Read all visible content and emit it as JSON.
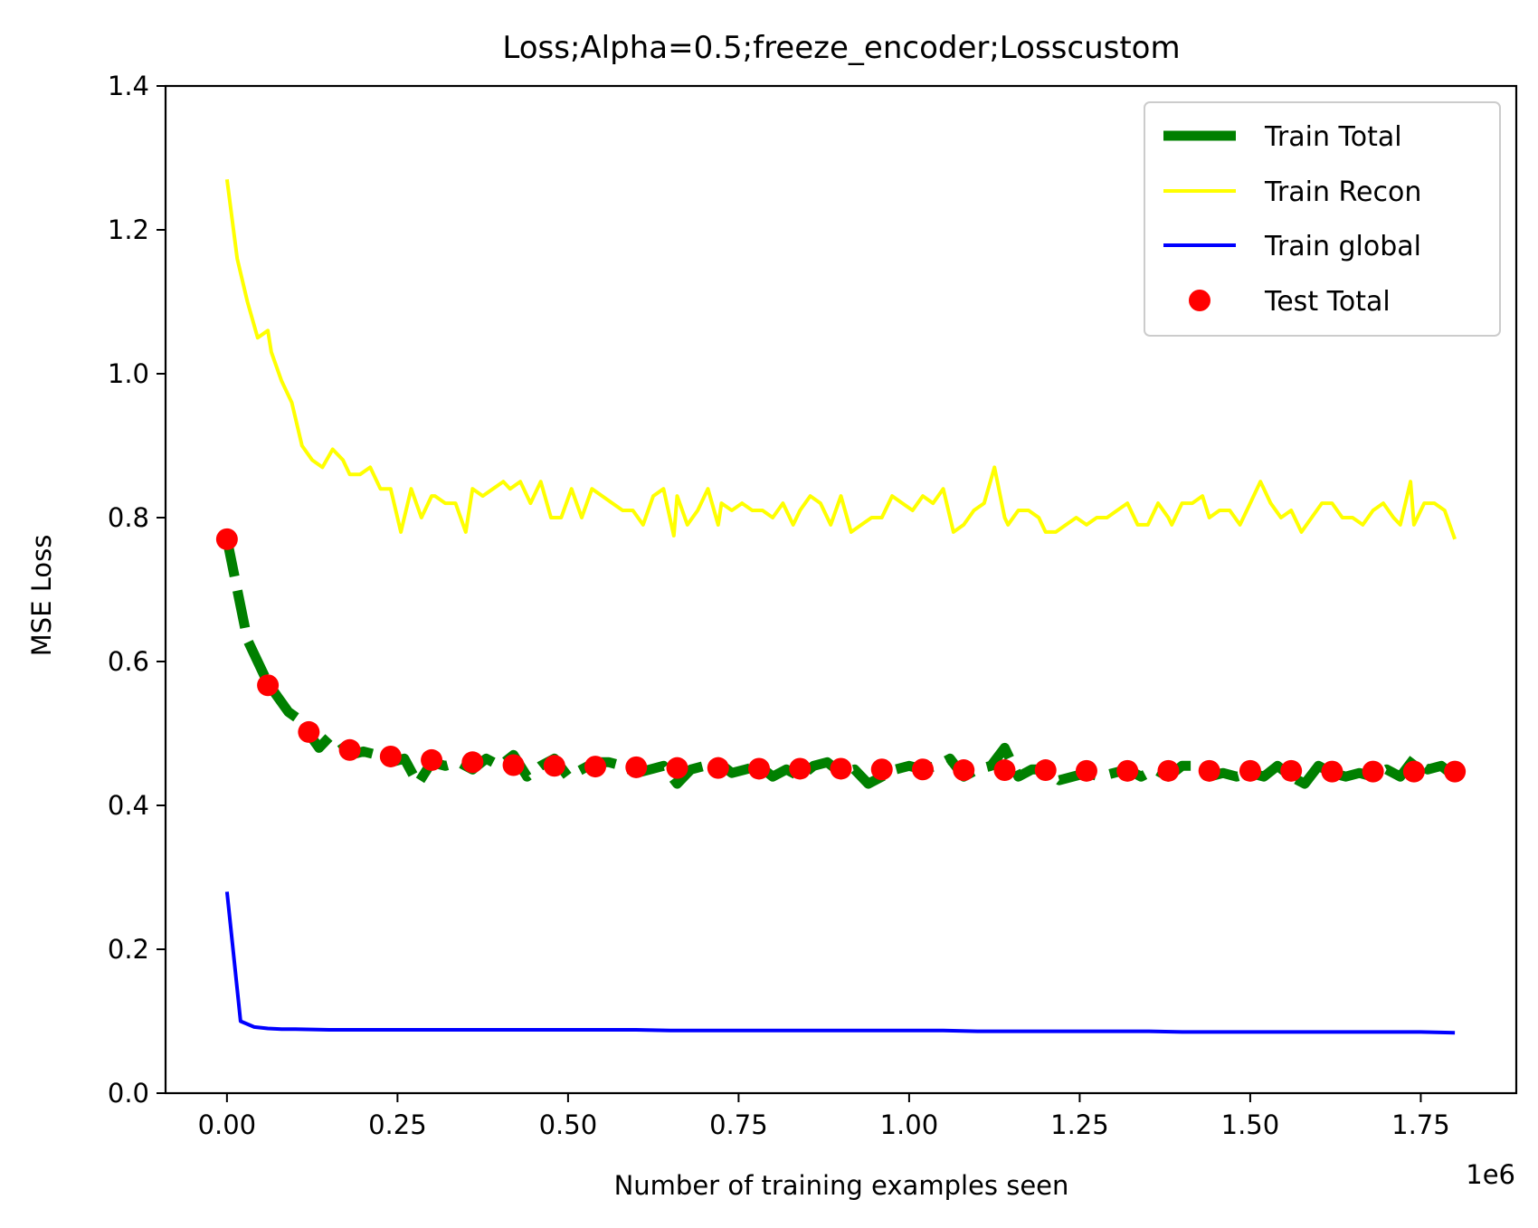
{
  "chart_data": {
    "type": "line",
    "title": "Loss;Alpha=0.5;freeze_encoder;Losscustom",
    "xlabel": "Number of training examples seen",
    "ylabel": "MSE Loss",
    "x_offset_label": "1e6",
    "xlim": [
      -0.09,
      1.89
    ],
    "ylim": [
      0.0,
      1.4
    ],
    "xticks": [
      0.0,
      0.25,
      0.5,
      0.75,
      1.0,
      1.25,
      1.5,
      1.75
    ],
    "xtick_labels": [
      "0.00",
      "0.25",
      "0.50",
      "0.75",
      "1.00",
      "1.25",
      "1.50",
      "1.75"
    ],
    "yticks": [
      0.0,
      0.2,
      0.4,
      0.6,
      0.8,
      1.0,
      1.2,
      1.4
    ],
    "ytick_labels": [
      "0.0",
      "0.2",
      "0.4",
      "0.6",
      "0.8",
      "1.0",
      "1.2",
      "1.4"
    ],
    "grid": false,
    "legend_position": "top-right",
    "series": [
      {
        "name": "Train Total",
        "style": "dashed",
        "color": "#008000",
        "x": [
          0.0,
          0.015,
          0.03,
          0.045,
          0.06,
          0.075,
          0.09,
          0.105,
          0.12,
          0.135,
          0.15,
          0.165,
          0.18,
          0.2,
          0.22,
          0.24,
          0.26,
          0.28,
          0.3,
          0.32,
          0.34,
          0.36,
          0.38,
          0.4,
          0.42,
          0.44,
          0.46,
          0.48,
          0.5,
          0.52,
          0.54,
          0.56,
          0.58,
          0.6,
          0.62,
          0.64,
          0.66,
          0.68,
          0.7,
          0.72,
          0.74,
          0.76,
          0.78,
          0.8,
          0.82,
          0.84,
          0.86,
          0.88,
          0.9,
          0.92,
          0.94,
          0.96,
          0.98,
          1.0,
          1.02,
          1.04,
          1.06,
          1.08,
          1.1,
          1.12,
          1.14,
          1.16,
          1.18,
          1.2,
          1.22,
          1.24,
          1.26,
          1.28,
          1.3,
          1.32,
          1.34,
          1.36,
          1.38,
          1.4,
          1.42,
          1.44,
          1.46,
          1.48,
          1.5,
          1.52,
          1.54,
          1.56,
          1.58,
          1.6,
          1.62,
          1.64,
          1.66,
          1.68,
          1.7,
          1.72,
          1.74,
          1.76,
          1.78,
          1.8
        ],
        "values": [
          0.77,
          0.7,
          0.63,
          0.6,
          0.57,
          0.55,
          0.53,
          0.52,
          0.5,
          0.48,
          0.495,
          0.49,
          0.47,
          0.475,
          0.47,
          0.46,
          0.465,
          0.43,
          0.46,
          0.455,
          0.46,
          0.45,
          0.465,
          0.455,
          0.47,
          0.44,
          0.455,
          0.465,
          0.44,
          0.45,
          0.46,
          0.46,
          0.455,
          0.445,
          0.45,
          0.455,
          0.43,
          0.45,
          0.455,
          0.46,
          0.445,
          0.45,
          0.455,
          0.44,
          0.45,
          0.44,
          0.455,
          0.46,
          0.445,
          0.45,
          0.43,
          0.44,
          0.45,
          0.455,
          0.45,
          0.455,
          0.465,
          0.44,
          0.45,
          0.455,
          0.48,
          0.44,
          0.45,
          0.45,
          0.435,
          0.44,
          0.445,
          0.44,
          0.445,
          0.45,
          0.44,
          0.45,
          0.44,
          0.455,
          0.455,
          0.44,
          0.445,
          0.44,
          0.445,
          0.44,
          0.455,
          0.44,
          0.43,
          0.455,
          0.445,
          0.44,
          0.445,
          0.44,
          0.45,
          0.44,
          0.465,
          0.45,
          0.455,
          0.44
        ]
      },
      {
        "name": "Train Recon",
        "style": "solid",
        "color": "#ffff00",
        "x": [
          0.0,
          0.015,
          0.03,
          0.045,
          0.06,
          0.065,
          0.08,
          0.095,
          0.11,
          0.125,
          0.14,
          0.155,
          0.17,
          0.18,
          0.195,
          0.21,
          0.225,
          0.24,
          0.255,
          0.27,
          0.285,
          0.3,
          0.305,
          0.32,
          0.335,
          0.35,
          0.36,
          0.375,
          0.39,
          0.405,
          0.415,
          0.43,
          0.445,
          0.46,
          0.475,
          0.49,
          0.505,
          0.52,
          0.535,
          0.55,
          0.565,
          0.58,
          0.595,
          0.61,
          0.625,
          0.64,
          0.655,
          0.66,
          0.675,
          0.69,
          0.705,
          0.72,
          0.725,
          0.74,
          0.755,
          0.77,
          0.785,
          0.8,
          0.815,
          0.83,
          0.84,
          0.855,
          0.87,
          0.885,
          0.9,
          0.915,
          0.93,
          0.945,
          0.96,
          0.975,
          0.99,
          1.005,
          1.02,
          1.035,
          1.05,
          1.065,
          1.08,
          1.095,
          1.11,
          1.125,
          1.14,
          1.145,
          1.16,
          1.175,
          1.19,
          1.2,
          1.215,
          1.23,
          1.245,
          1.26,
          1.275,
          1.29,
          1.305,
          1.32,
          1.335,
          1.35,
          1.365,
          1.38,
          1.385,
          1.4,
          1.415,
          1.43,
          1.44,
          1.455,
          1.47,
          1.485,
          1.5,
          1.515,
          1.53,
          1.545,
          1.56,
          1.575,
          1.59,
          1.605,
          1.62,
          1.635,
          1.65,
          1.665,
          1.68,
          1.695,
          1.71,
          1.72,
          1.735,
          1.74,
          1.755,
          1.77,
          1.785,
          1.8
        ],
        "values": [
          1.27,
          1.16,
          1.1,
          1.05,
          1.06,
          1.03,
          0.99,
          0.96,
          0.9,
          0.88,
          0.87,
          0.895,
          0.88,
          0.86,
          0.86,
          0.87,
          0.84,
          0.84,
          0.78,
          0.84,
          0.8,
          0.83,
          0.83,
          0.82,
          0.82,
          0.78,
          0.84,
          0.83,
          0.84,
          0.85,
          0.84,
          0.85,
          0.82,
          0.85,
          0.8,
          0.8,
          0.84,
          0.8,
          0.84,
          0.83,
          0.82,
          0.81,
          0.81,
          0.79,
          0.83,
          0.84,
          0.775,
          0.83,
          0.79,
          0.81,
          0.84,
          0.79,
          0.82,
          0.81,
          0.82,
          0.81,
          0.81,
          0.8,
          0.82,
          0.79,
          0.81,
          0.83,
          0.82,
          0.79,
          0.83,
          0.78,
          0.79,
          0.8,
          0.8,
          0.83,
          0.82,
          0.81,
          0.83,
          0.82,
          0.84,
          0.78,
          0.79,
          0.81,
          0.82,
          0.87,
          0.8,
          0.79,
          0.81,
          0.81,
          0.8,
          0.78,
          0.78,
          0.79,
          0.8,
          0.79,
          0.8,
          0.8,
          0.81,
          0.82,
          0.79,
          0.79,
          0.82,
          0.8,
          0.79,
          0.82,
          0.82,
          0.83,
          0.8,
          0.81,
          0.81,
          0.79,
          0.82,
          0.85,
          0.82,
          0.8,
          0.81,
          0.78,
          0.8,
          0.82,
          0.82,
          0.8,
          0.8,
          0.79,
          0.81,
          0.82,
          0.8,
          0.79,
          0.85,
          0.79,
          0.82,
          0.82,
          0.81,
          0.77
        ]
      },
      {
        "name": "Train global",
        "style": "solid",
        "color": "#0000ff",
        "x": [
          0.0,
          0.02,
          0.04,
          0.06,
          0.08,
          0.1,
          0.15,
          0.2,
          0.25,
          0.3,
          0.35,
          0.4,
          0.45,
          0.5,
          0.55,
          0.6,
          0.65,
          0.7,
          0.75,
          0.8,
          0.85,
          0.9,
          0.95,
          1.0,
          1.05,
          1.1,
          1.15,
          1.2,
          1.25,
          1.3,
          1.35,
          1.4,
          1.45,
          1.5,
          1.55,
          1.6,
          1.65,
          1.7,
          1.75,
          1.8
        ],
        "values": [
          0.28,
          0.1,
          0.092,
          0.09,
          0.089,
          0.089,
          0.088,
          0.088,
          0.088,
          0.088,
          0.088,
          0.088,
          0.088,
          0.088,
          0.088,
          0.088,
          0.087,
          0.087,
          0.087,
          0.087,
          0.087,
          0.087,
          0.087,
          0.087,
          0.087,
          0.086,
          0.086,
          0.086,
          0.086,
          0.086,
          0.086,
          0.085,
          0.085,
          0.085,
          0.085,
          0.085,
          0.085,
          0.085,
          0.085,
          0.084
        ]
      },
      {
        "name": "Test Total",
        "style": "scatter",
        "color": "#ff0000",
        "x": [
          0.0,
          0.06,
          0.12,
          0.18,
          0.24,
          0.3,
          0.36,
          0.42,
          0.48,
          0.54,
          0.6,
          0.66,
          0.72,
          0.78,
          0.84,
          0.9,
          0.96,
          1.02,
          1.08,
          1.14,
          1.2,
          1.26,
          1.32,
          1.38,
          1.44,
          1.5,
          1.56,
          1.62,
          1.68,
          1.74,
          1.8
        ],
        "values": [
          0.77,
          0.567,
          0.502,
          0.477,
          0.468,
          0.463,
          0.46,
          0.456,
          0.455,
          0.454,
          0.453,
          0.452,
          0.452,
          0.451,
          0.451,
          0.451,
          0.45,
          0.45,
          0.449,
          0.449,
          0.449,
          0.448,
          0.448,
          0.448,
          0.448,
          0.448,
          0.448,
          0.447,
          0.447,
          0.447,
          0.447
        ]
      }
    ]
  }
}
